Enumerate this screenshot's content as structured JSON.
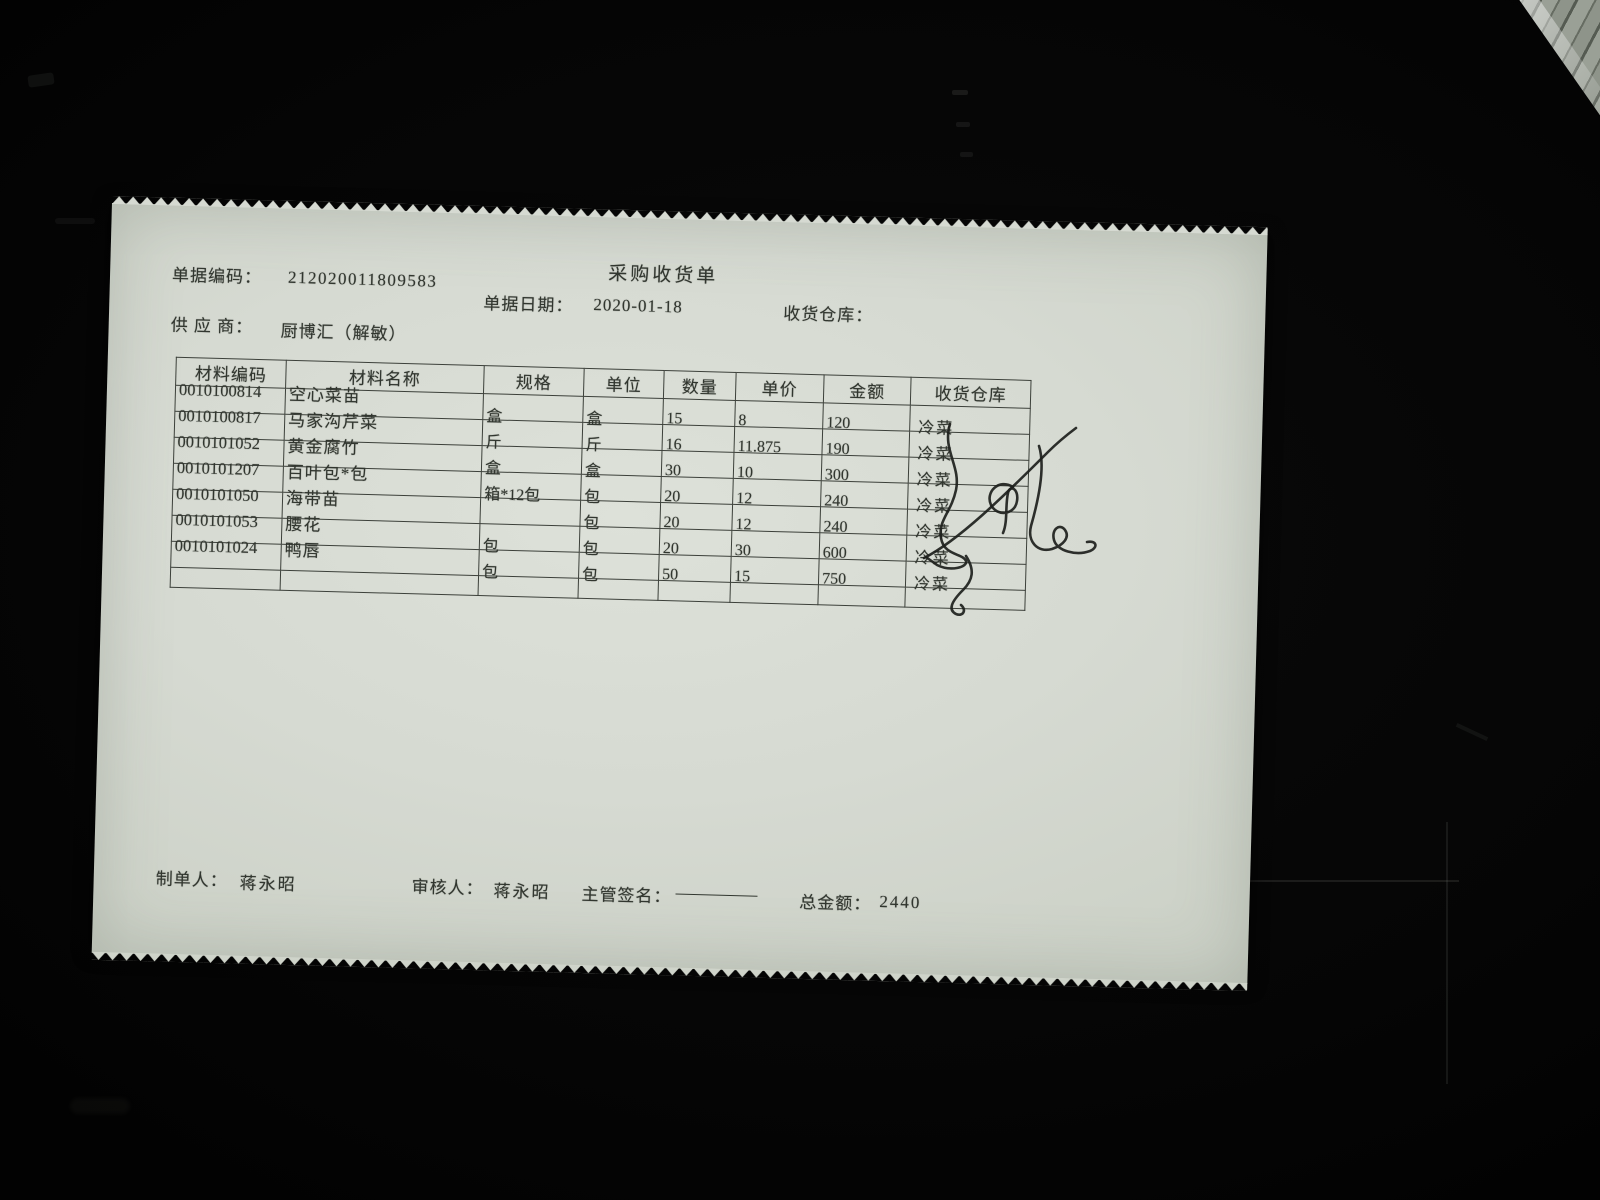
{
  "photo": {
    "background_color": "#060606",
    "paper_color": "#d6dad2",
    "ink_color": "#31362f"
  },
  "doc": {
    "title": "采购收货单",
    "code_label": "单据编码：",
    "code": "212020011809583",
    "date_label": "单据日期：",
    "date": "2020-01-18",
    "warehouse_label": "收货仓库：",
    "supplier_label": "供 应 商：",
    "supplier": "厨博汇（解敏）",
    "table": {
      "headers": [
        "材料编码",
        "材料名称",
        "规格",
        "单位",
        "数量",
        "单价",
        "金额",
        "收货仓库"
      ],
      "rows": [
        [
          "0010100814",
          "空心菜苗",
          "盒",
          "盒",
          "15",
          "8",
          "120",
          "冷菜"
        ],
        [
          "0010100817",
          "马家沟芹菜",
          "斤",
          "斤",
          "16",
          "11.875",
          "190",
          "冷菜"
        ],
        [
          "0010101052",
          "黄金腐竹",
          "盒",
          "盒",
          "30",
          "10",
          "300",
          "冷菜"
        ],
        [
          "0010101207",
          "百叶包*包",
          "箱*12包",
          "包",
          "20",
          "12",
          "240",
          "冷菜"
        ],
        [
          "0010101050",
          "海带苗",
          "",
          "包",
          "20",
          "12",
          "240",
          "冷菜"
        ],
        [
          "0010101053",
          "腰花",
          "包",
          "包",
          "20",
          "30",
          "600",
          "冷菜"
        ],
        [
          "0010101024",
          "鸭唇",
          "包",
          "包",
          "50",
          "15",
          "750",
          "冷菜"
        ]
      ]
    },
    "footer": {
      "preparer_label": "制单人：",
      "preparer": "蒋永昭",
      "reviewer_label": "审核人：",
      "reviewer": "蒋永昭",
      "signature_label": "主管签名：",
      "total_label": "总金额：",
      "total": "2440"
    }
  }
}
